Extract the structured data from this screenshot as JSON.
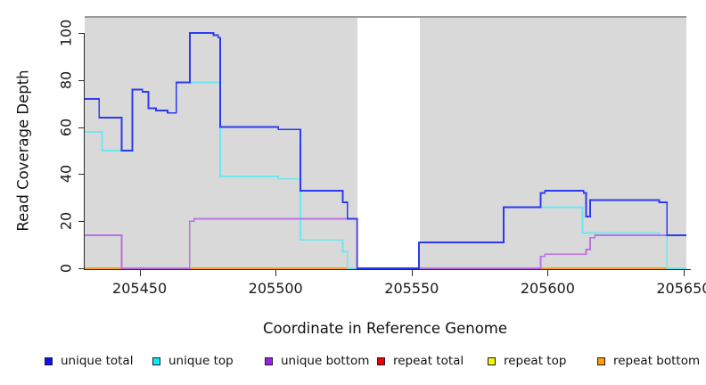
{
  "chart_data": {
    "type": "line",
    "line_style": "step",
    "title": "",
    "xlabel": "Coordinate in Reference Genome",
    "ylabel": "Read Coverage Depth",
    "xlim": [
      205429.8,
      205651
    ],
    "ylim": [
      0,
      106
    ],
    "x_ticks": [
      205450,
      205500,
      205550,
      205600,
      205650
    ],
    "y_ticks": [
      0,
      20,
      40,
      60,
      80,
      100
    ],
    "panel_background": "#d9d9d9",
    "panel_top_border": "#9b9b9b",
    "grid": false,
    "gap_region": {
      "x_start": 205530,
      "x_end": 205553
    },
    "legend_position": "bottom",
    "draw_order": [
      "repeat top",
      "repeat total",
      "repeat bottom",
      "unique top",
      "unique bottom",
      "unique total"
    ],
    "series": [
      {
        "name": "unique total",
        "color": "#2b3cf0",
        "swatch": "#0f0fee",
        "points": [
          [
            205429.8,
            72
          ],
          [
            205435.1,
            64
          ],
          [
            205443.4,
            50
          ],
          [
            205447.3,
            76
          ],
          [
            205451,
            75
          ],
          [
            205453.2,
            68
          ],
          [
            205456,
            67
          ],
          [
            205460.3,
            66
          ],
          [
            205463.5,
            79
          ],
          [
            205468.5,
            100
          ],
          [
            205477.2,
            99
          ],
          [
            205478.9,
            98
          ],
          [
            205479.6,
            60
          ],
          [
            205501,
            59
          ],
          [
            205509.1,
            33
          ],
          [
            205524.7,
            28
          ],
          [
            205526.4,
            21
          ],
          [
            205530,
            0
          ],
          [
            205552.7,
            11
          ],
          [
            205583.8,
            26
          ],
          [
            205597.4,
            32
          ],
          [
            205599,
            33
          ],
          [
            205613.2,
            32
          ],
          [
            205614.1,
            22
          ],
          [
            205615.6,
            29
          ],
          [
            205641,
            28
          ],
          [
            205643.9,
            14
          ],
          [
            205651,
            14
          ]
        ]
      },
      {
        "name": "unique top",
        "color": "#6ee6ef",
        "swatch": "#00eeee",
        "points": [
          [
            205429.8,
            58
          ],
          [
            205436.2,
            50
          ],
          [
            205447.3,
            76
          ],
          [
            205451,
            75
          ],
          [
            205453.2,
            68
          ],
          [
            205456,
            67
          ],
          [
            205460.3,
            66
          ],
          [
            205463.5,
            79
          ],
          [
            205479.6,
            39
          ],
          [
            205501,
            38
          ],
          [
            205509.1,
            12
          ],
          [
            205524.7,
            7
          ],
          [
            205526.4,
            0
          ],
          [
            205552.7,
            11
          ],
          [
            205583.8,
            26
          ],
          [
            205612.8,
            15
          ],
          [
            205641,
            14
          ],
          [
            205643.9,
            0
          ],
          [
            205651,
            0
          ]
        ]
      },
      {
        "name": "unique bottom",
        "color": "#bb71e8",
        "swatch": "#a21fe0",
        "points": [
          [
            205429.8,
            14
          ],
          [
            205443.4,
            0
          ],
          [
            205468.4,
            20
          ],
          [
            205470,
            21
          ],
          [
            205529.8,
            0
          ],
          [
            205597.4,
            5
          ],
          [
            205599,
            6
          ],
          [
            205614.1,
            8
          ],
          [
            205615.6,
            13
          ],
          [
            205617.3,
            14
          ],
          [
            205651,
            14
          ]
        ]
      },
      {
        "name": "repeat total",
        "color": "#e02020",
        "swatch": "#ee0000",
        "points": [
          [
            205429.8,
            0
          ],
          [
            205651,
            0
          ]
        ]
      },
      {
        "name": "repeat top",
        "color": "#f0f000",
        "swatch": "#f5f500",
        "points": [
          [
            205429.8,
            0
          ],
          [
            205651,
            0
          ]
        ]
      },
      {
        "name": "repeat bottom",
        "color": "#ff9d1c",
        "swatch": "#ff9f00",
        "points": [
          [
            205429.8,
            0
          ],
          [
            205651,
            0
          ]
        ]
      }
    ]
  }
}
